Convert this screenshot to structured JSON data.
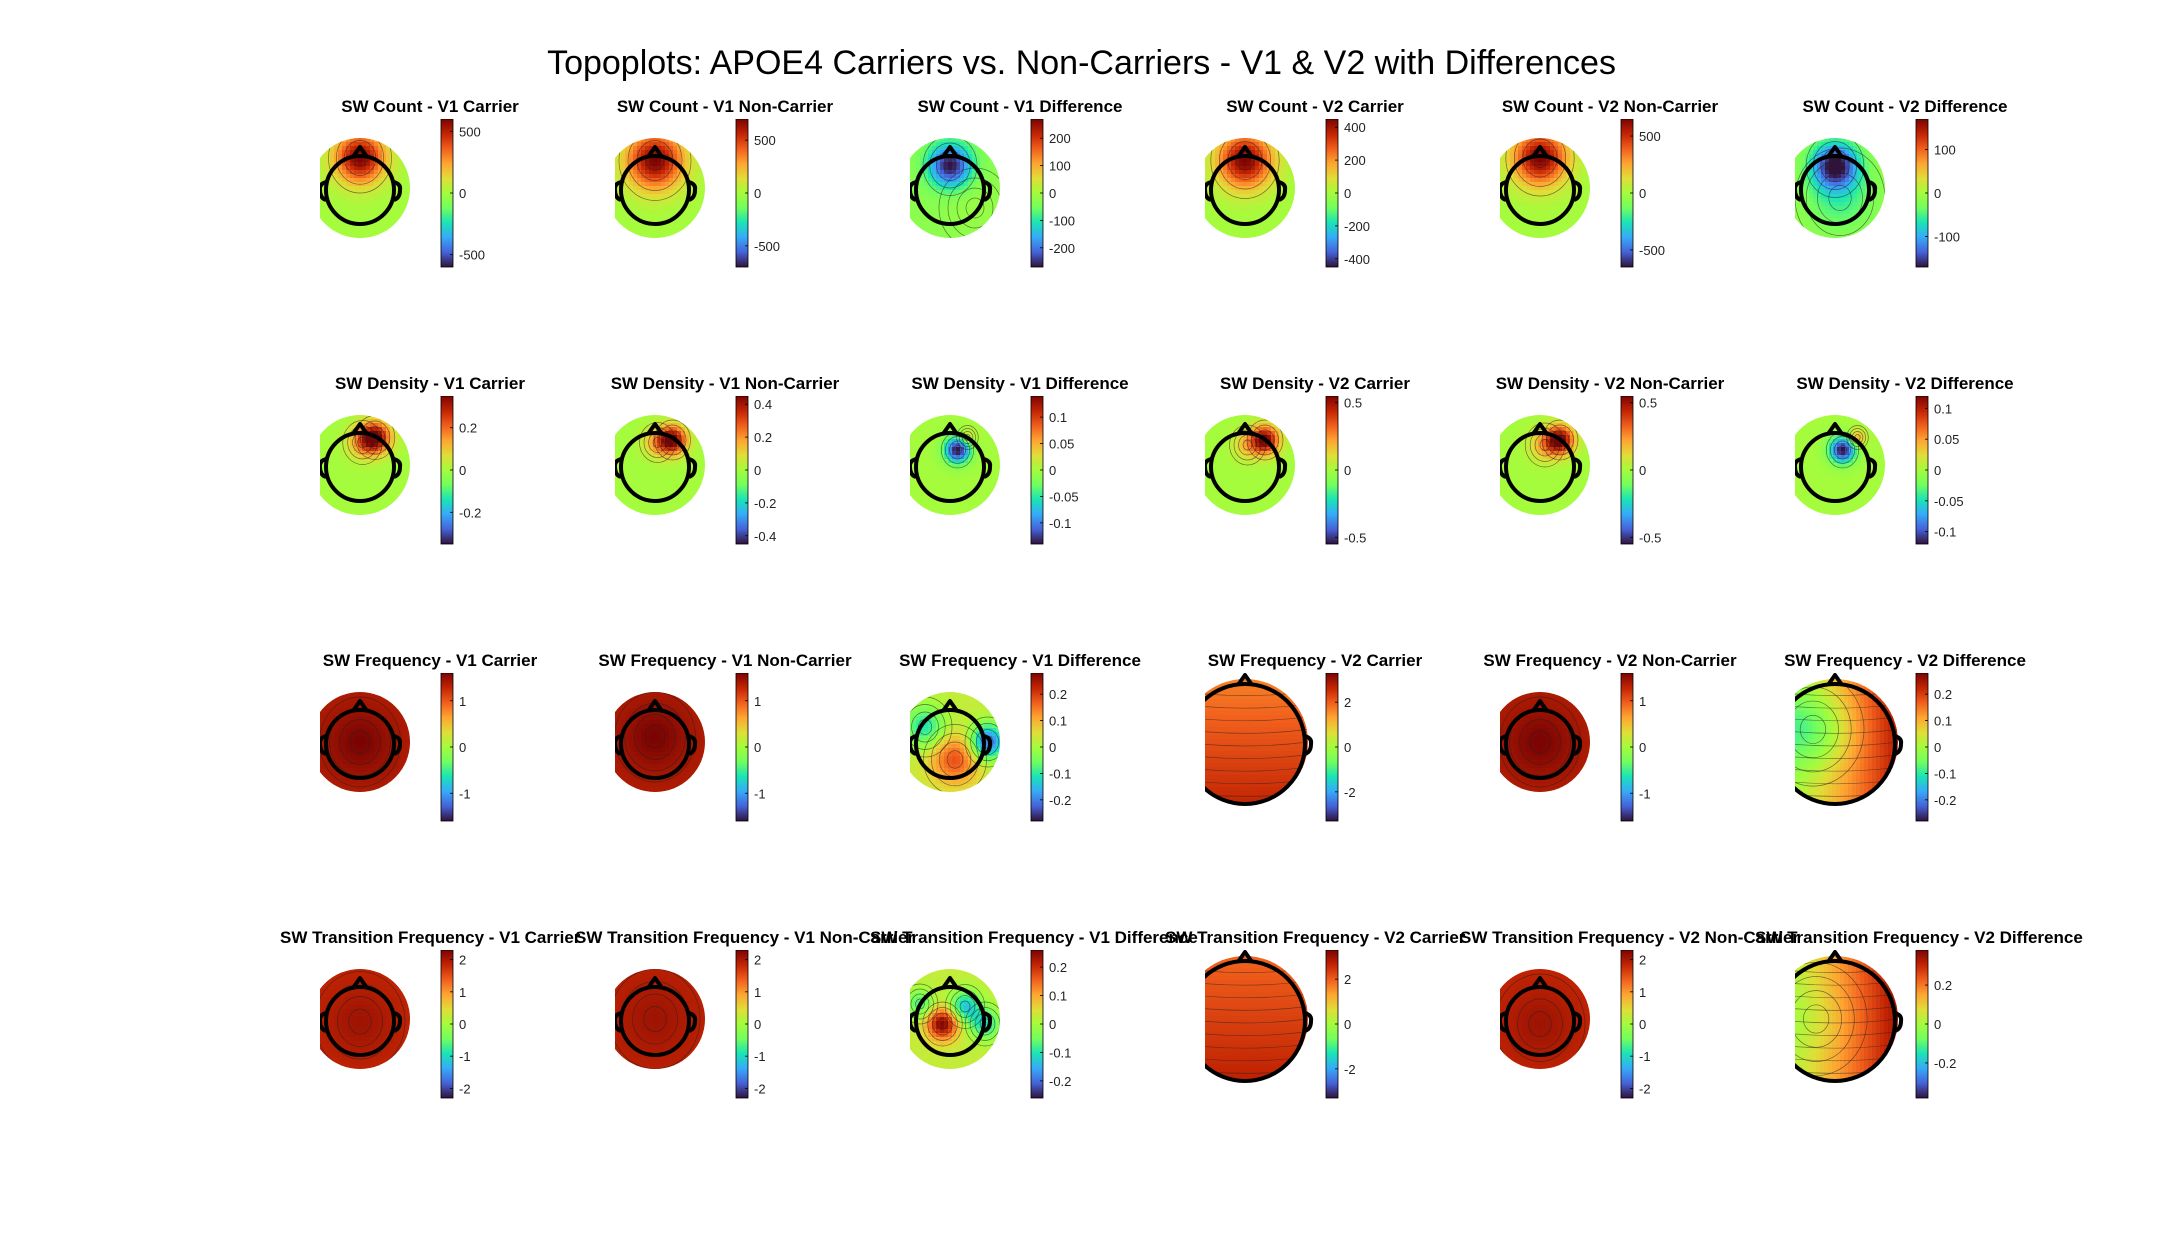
{
  "figure_title": "Topoplots: APOE4 Carriers vs. Non-Carriers - V1 & V2 with Differences",
  "chart_data": [
    {
      "type": "heatmap",
      "title": "SW Count - V1 Carrier",
      "colormap": "turbo",
      "clim": [
        -600,
        600
      ],
      "ticks": [
        500,
        0,
        -500
      ],
      "tick_labels": [
        "500",
        "0",
        "-500"
      ],
      "size": "small",
      "pattern": {
        "base": 0.0,
        "blobs": [
          [
            0,
            -0.6,
            1,
            0.35
          ]
        ]
      },
      "note_range": "frontal maximum ~600"
    },
    {
      "type": "heatmap",
      "title": "SW Count - V1 Non-Carrier",
      "colormap": "turbo",
      "clim": [
        -700,
        700
      ],
      "ticks": [
        500,
        0,
        -500
      ],
      "tick_labels": [
        "500",
        "0",
        "-500"
      ],
      "size": "small",
      "pattern": {
        "base": 0.0,
        "blobs": [
          [
            0,
            -0.55,
            1,
            0.4
          ]
        ]
      }
    },
    {
      "type": "heatmap",
      "title": "SW Count - V1 Difference",
      "colormap": "turbo",
      "clim": [
        -270,
        270
      ],
      "ticks": [
        200,
        100,
        0,
        -100,
        -200
      ],
      "tick_labels": [
        "200",
        "100",
        "0",
        "-100",
        "-200"
      ],
      "size": "small",
      "pattern": {
        "base": -0.1,
        "blobs": [
          [
            0,
            -0.45,
            -0.9,
            0.3
          ],
          [
            0.5,
            0.4,
            0.05,
            0.4
          ]
        ]
      }
    },
    {
      "type": "heatmap",
      "title": "SW Count - V2 Carrier",
      "colormap": "turbo",
      "clim": [
        -450,
        450
      ],
      "ticks": [
        400,
        200,
        0,
        -200,
        -400
      ],
      "tick_labels": [
        "400",
        "200",
        "0",
        "-200",
        "-400"
      ],
      "size": "small",
      "pattern": {
        "base": 0.0,
        "blobs": [
          [
            0,
            -0.55,
            1,
            0.38
          ]
        ]
      }
    },
    {
      "type": "heatmap",
      "title": "SW Count - V2 Non-Carrier",
      "colormap": "turbo",
      "clim": [
        -650,
        650
      ],
      "ticks": [
        500,
        0,
        -500
      ],
      "tick_labels": [
        "500",
        "0",
        "-500"
      ],
      "size": "small",
      "pattern": {
        "base": 0.0,
        "blobs": [
          [
            0,
            -0.6,
            1,
            0.38
          ]
        ]
      }
    },
    {
      "type": "heatmap",
      "title": "SW Count - V2 Difference",
      "colormap": "turbo",
      "clim": [
        -170,
        170
      ],
      "ticks": [
        100,
        0,
        -100
      ],
      "tick_labels": [
        "100",
        "0",
        "-100"
      ],
      "size": "small",
      "pattern": {
        "base": -0.05,
        "blobs": [
          [
            0,
            -0.45,
            -0.95,
            0.32
          ],
          [
            0.1,
            0.2,
            -0.25,
            0.5
          ]
        ]
      }
    },
    {
      "type": "heatmap",
      "title": "SW Density - V1 Carrier",
      "colormap": "turbo",
      "clim": [
        -0.35,
        0.35
      ],
      "ticks": [
        0.2,
        0,
        -0.2
      ],
      "tick_labels": [
        "0.2",
        "0",
        "-0.2"
      ],
      "size": "small",
      "pattern": {
        "base": 0.0,
        "blobs": [
          [
            0.3,
            -0.55,
            1,
            0.22
          ],
          [
            0.05,
            -0.45,
            0.35,
            0.22
          ]
        ]
      }
    },
    {
      "type": "heatmap",
      "title": "SW Density - V1 Non-Carrier",
      "colormap": "turbo",
      "clim": [
        -0.45,
        0.45
      ],
      "ticks": [
        0.4,
        0.2,
        0,
        -0.2,
        -0.4
      ],
      "tick_labels": [
        "0.4",
        "0.2",
        "0",
        "-0.2",
        "-0.4"
      ],
      "size": "small",
      "pattern": {
        "base": 0.0,
        "blobs": [
          [
            0.35,
            -0.5,
            1,
            0.2
          ],
          [
            0.05,
            -0.45,
            0.35,
            0.2
          ]
        ]
      }
    },
    {
      "type": "heatmap",
      "title": "SW Density - V1 Difference",
      "colormap": "turbo",
      "clim": [
        -0.14,
        0.14
      ],
      "ticks": [
        0.1,
        0.05,
        0,
        -0.05,
        -0.1
      ],
      "tick_labels": [
        "0.1",
        "0.05",
        "0",
        "-0.05",
        "-0.1"
      ],
      "size": "small",
      "pattern": {
        "base": 0.0,
        "blobs": [
          [
            0.15,
            -0.3,
            -1,
            0.18
          ],
          [
            0.35,
            -0.55,
            0.25,
            0.12
          ]
        ]
      }
    },
    {
      "type": "heatmap",
      "title": "SW Density - V2 Carrier",
      "colormap": "turbo",
      "clim": [
        -0.55,
        0.55
      ],
      "ticks": [
        0.5,
        0,
        -0.5
      ],
      "tick_labels": [
        "0.5",
        "0",
        "-0.5"
      ],
      "size": "small",
      "pattern": {
        "base": 0.0,
        "blobs": [
          [
            0.4,
            -0.5,
            1,
            0.2
          ],
          [
            0.05,
            -0.4,
            0.3,
            0.2
          ]
        ]
      }
    },
    {
      "type": "heatmap",
      "title": "SW Density - V2 Non-Carrier",
      "colormap": "turbo",
      "clim": [
        -0.55,
        0.55
      ],
      "ticks": [
        0.5,
        0,
        -0.5
      ],
      "tick_labels": [
        "0.5",
        "0",
        "-0.5"
      ],
      "size": "small",
      "pattern": {
        "base": 0.0,
        "blobs": [
          [
            0.4,
            -0.5,
            1,
            0.2
          ],
          [
            0.1,
            -0.4,
            0.35,
            0.22
          ]
        ]
      }
    },
    {
      "type": "heatmap",
      "title": "SW Density - V2 Difference",
      "colormap": "turbo",
      "clim": [
        -0.12,
        0.12
      ],
      "ticks": [
        0.1,
        0.05,
        0,
        -0.05,
        -0.1
      ],
      "tick_labels": [
        "0.1",
        "0.05",
        "0",
        "-0.05",
        "-0.1"
      ],
      "size": "small",
      "pattern": {
        "base": 0.0,
        "blobs": [
          [
            0.15,
            -0.3,
            -1,
            0.18
          ],
          [
            0.45,
            -0.55,
            0.4,
            0.12
          ]
        ]
      }
    },
    {
      "type": "heatmap",
      "title": "SW Frequency - V1 Carrier",
      "colormap": "turbo",
      "clim": [
        -1.6,
        1.6
      ],
      "ticks": [
        1,
        0,
        -1
      ],
      "tick_labels": [
        "1",
        "0",
        "-1"
      ],
      "size": "small",
      "pattern": {
        "base": 0.85,
        "blobs": [
          [
            0,
            0,
            0.15,
            0.45
          ]
        ]
      }
    },
    {
      "type": "heatmap",
      "title": "SW Frequency - V1 Non-Carrier",
      "colormap": "turbo",
      "clim": [
        -1.6,
        1.6
      ],
      "ticks": [
        1,
        0,
        -1
      ],
      "tick_labels": [
        "1",
        "0",
        "-1"
      ],
      "size": "small",
      "pattern": {
        "base": 0.85,
        "blobs": [
          [
            0,
            -0.1,
            0.15,
            0.45
          ]
        ]
      }
    },
    {
      "type": "heatmap",
      "title": "SW Frequency - V1 Difference",
      "colormap": "turbo",
      "clim": [
        -0.28,
        0.28
      ],
      "ticks": [
        0.2,
        0.1,
        0,
        -0.1,
        -0.2
      ],
      "tick_labels": [
        "0.2",
        "0.1",
        "0",
        "-0.1",
        "-0.2"
      ],
      "size": "small",
      "pattern": {
        "base": 0.1,
        "blobs": [
          [
            -0.5,
            -0.3,
            -0.5,
            0.3
          ],
          [
            0.75,
            0,
            -0.9,
            0.25
          ],
          [
            0.1,
            0.35,
            0.55,
            0.35
          ]
        ]
      }
    },
    {
      "type": "heatmap",
      "title": "SW Frequency - V2 Carrier",
      "colormap": "turbo",
      "clim": [
        -3.3,
        3.3
      ],
      "ticks": [
        2,
        0,
        -2
      ],
      "tick_labels": [
        "2",
        "0",
        "-2"
      ],
      "size": "large",
      "pattern": {
        "base": 0.65,
        "gradient_y": 0.15
      }
    },
    {
      "type": "heatmap",
      "title": "SW Frequency - V2 Non-Carrier",
      "colormap": "turbo",
      "clim": [
        -1.6,
        1.6
      ],
      "ticks": [
        1,
        0,
        -1
      ],
      "tick_labels": [
        "1",
        "0",
        "-1"
      ],
      "size": "small",
      "pattern": {
        "base": 0.85,
        "blobs": [
          [
            0,
            0,
            0.15,
            0.45
          ]
        ]
      }
    },
    {
      "type": "heatmap",
      "title": "SW Frequency - V2 Difference",
      "colormap": "turbo",
      "clim": [
        -0.28,
        0.28
      ],
      "ticks": [
        0.2,
        0.1,
        0,
        -0.1,
        -0.2
      ],
      "tick_labels": [
        "0.2",
        "0.1",
        "0",
        "-0.1",
        "-0.2"
      ],
      "size": "large",
      "pattern": {
        "base": 0.35,
        "gradient_x": 0.5,
        "blobs": [
          [
            -0.35,
            -0.2,
            -0.4,
            0.45
          ]
        ]
      }
    },
    {
      "type": "heatmap",
      "title": "SW Transition Frequency - V1 Carrier",
      "colormap": "turbo",
      "clim": [
        -2.3,
        2.3
      ],
      "ticks": [
        2,
        1,
        0,
        -1,
        -2
      ],
      "tick_labels": [
        "2",
        "1",
        "0",
        "-1",
        "-2"
      ],
      "size": "small",
      "pattern": {
        "base": 0.8,
        "blobs": [
          [
            0,
            0.05,
            0.1,
            0.5
          ]
        ]
      }
    },
    {
      "type": "heatmap",
      "title": "SW Transition Frequency - V1 Non-Carrier",
      "colormap": "turbo",
      "clim": [
        -2.3,
        2.3
      ],
      "ticks": [
        2,
        1,
        0,
        -1,
        -2
      ],
      "tick_labels": [
        "2",
        "1",
        "0",
        "-1",
        "-2"
      ],
      "size": "small",
      "pattern": {
        "base": 0.82,
        "blobs": [
          [
            0,
            0,
            0.08,
            0.5
          ]
        ]
      }
    },
    {
      "type": "heatmap",
      "title": "SW Transition Frequency - V1 Difference",
      "colormap": "turbo",
      "clim": [
        -0.26,
        0.26
      ],
      "ticks": [
        0.2,
        0.1,
        0,
        -0.1,
        -0.2
      ],
      "tick_labels": [
        "0.2",
        "0.1",
        "0",
        "-0.1",
        "-0.2"
      ],
      "size": "small",
      "pattern": {
        "base": 0.1,
        "blobs": [
          [
            -0.15,
            0.1,
            0.9,
            0.22
          ],
          [
            0.3,
            -0.25,
            -0.6,
            0.22
          ],
          [
            0.7,
            0.1,
            -0.5,
            0.22
          ],
          [
            -0.6,
            -0.3,
            -0.4,
            0.2
          ]
        ]
      }
    },
    {
      "type": "heatmap",
      "title": "SW Transition Frequency - V2 Carrier",
      "colormap": "turbo",
      "clim": [
        -3.3,
        3.3
      ],
      "ticks": [
        2,
        0,
        -2
      ],
      "tick_labels": [
        "2",
        "0",
        "-2"
      ],
      "size": "large",
      "pattern": {
        "base": 0.7,
        "gradient_y": 0.12
      }
    },
    {
      "type": "heatmap",
      "title": "SW Transition Frequency - V2 Non-Carrier",
      "colormap": "turbo",
      "clim": [
        -2.3,
        2.3
      ],
      "ticks": [
        2,
        1,
        0,
        -1,
        -2
      ],
      "tick_labels": [
        "2",
        "1",
        "0",
        "-1",
        "-2"
      ],
      "size": "small",
      "pattern": {
        "base": 0.8,
        "blobs": [
          [
            0,
            0.1,
            0.1,
            0.5
          ]
        ]
      }
    },
    {
      "type": "heatmap",
      "title": "SW Transition Frequency - V2 Difference",
      "colormap": "turbo",
      "clim": [
        -0.38,
        0.38
      ],
      "ticks": [
        0.2,
        0,
        -0.2
      ],
      "tick_labels": [
        "0.2",
        "0",
        "-0.2"
      ],
      "size": "large",
      "pattern": {
        "base": 0.4,
        "gradient_x": 0.5,
        "blobs": [
          [
            -0.3,
            0,
            -0.1,
            0.45
          ]
        ]
      }
    }
  ]
}
